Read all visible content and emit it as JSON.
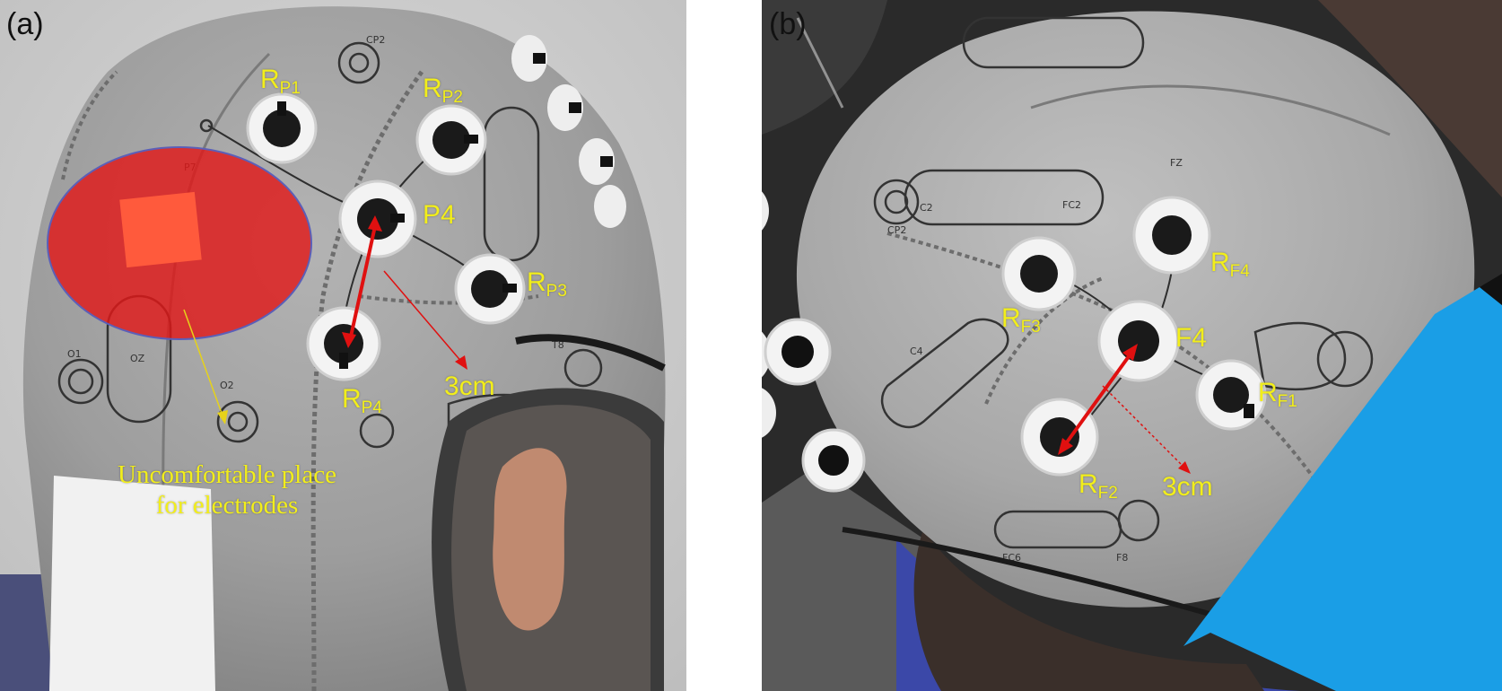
{
  "panels": [
    {
      "id": "a",
      "label": "(a)",
      "annotations": {
        "rp1": {
          "main": "R",
          "sub": "P1"
        },
        "rp2": {
          "main": "R",
          "sub": "P2"
        },
        "p4": "P4",
        "rp3": {
          "main": "R",
          "sub": "P3"
        },
        "rp4": {
          "main": "R",
          "sub": "P4"
        },
        "distance": "3cm",
        "note_line1": "Uncomfortable place",
        "note_line2": "for electrodes"
      }
    },
    {
      "id": "b",
      "label": "(b)",
      "annotations": {
        "rf4": {
          "main": "R",
          "sub": "F4"
        },
        "rf3": {
          "main": "R",
          "sub": "F3"
        },
        "f4": "F4",
        "rf1": {
          "main": "R",
          "sub": "F1"
        },
        "rf2": {
          "main": "R",
          "sub": "F2"
        },
        "distance": "3cm"
      }
    }
  ],
  "colors": {
    "label_yellow": "#f2ee1a",
    "arrow_red": "#e01010",
    "highlight_red": "#e01818",
    "cap_gray": "#9c9c9c",
    "cover_blue": "#1a9ee6"
  }
}
